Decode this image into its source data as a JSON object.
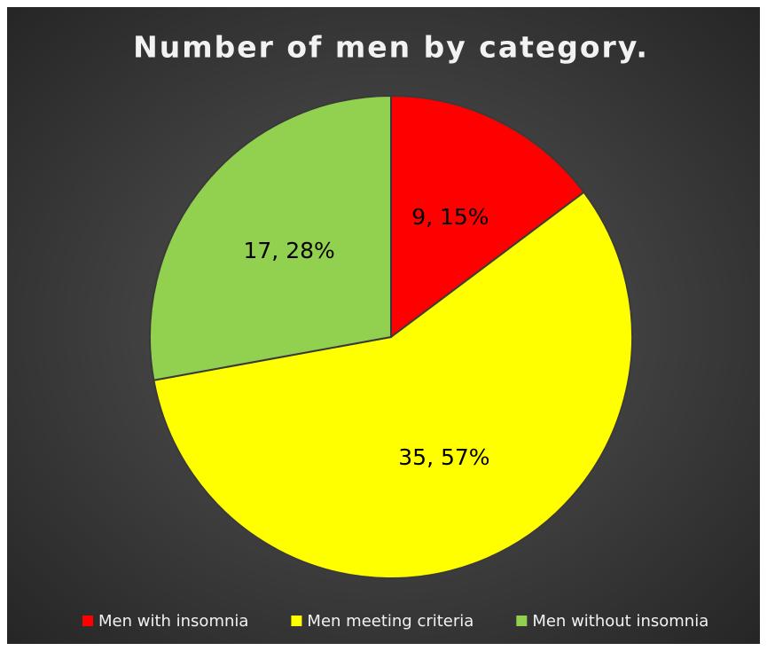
{
  "chart_data": {
    "type": "pie",
    "title": "Number of men by category.",
    "categories": [
      "Men with insomnia",
      "Men meeting criteria",
      "Men without insomnia"
    ],
    "values": [
      9,
      35,
      17
    ],
    "value_labels": [
      "9, 15%",
      "35, 57%",
      "17, 28%"
    ],
    "colors": [
      "#ff0000",
      "#ffff00",
      "#92d050"
    ],
    "legend": "bottom"
  }
}
